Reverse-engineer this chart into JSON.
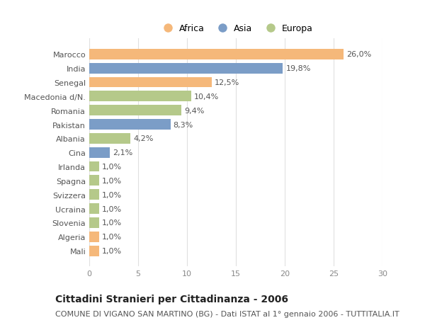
{
  "title": "Cittadini Stranieri per Cittadinanza - 2006",
  "subtitle": "COMUNE DI VIGANO SAN MARTINO (BG) - Dati ISTAT al 1° gennaio 2006 - TUTTITALIA.IT",
  "categories": [
    "Marocco",
    "India",
    "Senegal",
    "Macedonia d/N.",
    "Romania",
    "Pakistan",
    "Albania",
    "Cina",
    "Irlanda",
    "Spagna",
    "Svizzera",
    "Ucraina",
    "Slovenia",
    "Algeria",
    "Mali"
  ],
  "values": [
    26.0,
    19.8,
    12.5,
    10.4,
    9.4,
    8.3,
    4.2,
    2.1,
    1.0,
    1.0,
    1.0,
    1.0,
    1.0,
    1.0,
    1.0
  ],
  "labels": [
    "26,0%",
    "19,8%",
    "12,5%",
    "10,4%",
    "9,4%",
    "8,3%",
    "4,2%",
    "2,1%",
    "1,0%",
    "1,0%",
    "1,0%",
    "1,0%",
    "1,0%",
    "1,0%",
    "1,0%"
  ],
  "continent": [
    "Africa",
    "Asia",
    "Africa",
    "Europa",
    "Europa",
    "Asia",
    "Europa",
    "Asia",
    "Europa",
    "Europa",
    "Europa",
    "Europa",
    "Europa",
    "Africa",
    "Africa"
  ],
  "colors": {
    "Africa": "#F5B87A",
    "Asia": "#7B9DC7",
    "Europa": "#B5C98A"
  },
  "xlim": [
    0,
    30
  ],
  "xticks": [
    0,
    5,
    10,
    15,
    20,
    25,
    30
  ],
  "background_color": "#ffffff",
  "grid_color": "#e0e0e0",
  "bar_height": 0.75,
  "title_fontsize": 10,
  "subtitle_fontsize": 8,
  "label_fontsize": 8,
  "tick_fontsize": 8,
  "legend_fontsize": 9
}
